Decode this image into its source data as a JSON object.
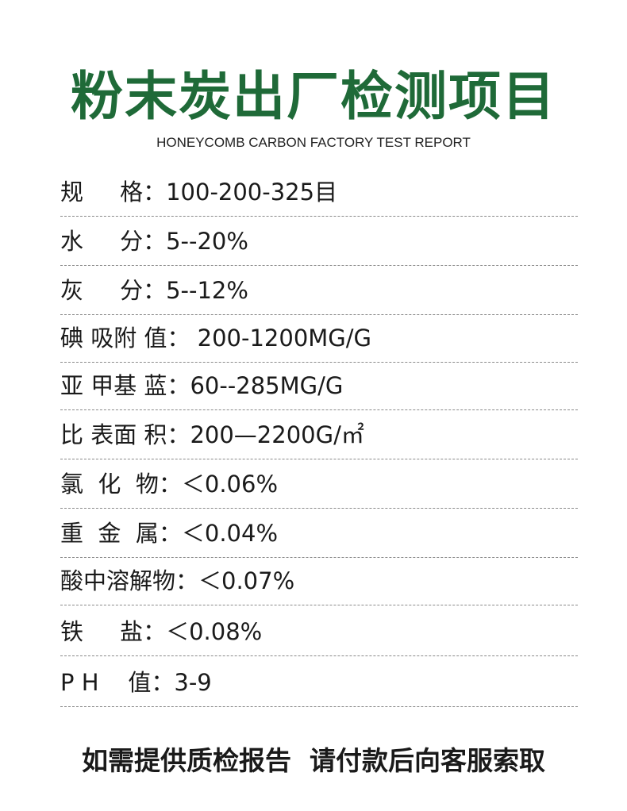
{
  "title": "粉末炭出厂检测项目",
  "subtitle": "HONEYCOMB CARBON FACTORY TEST REPORT",
  "colors": {
    "title": "#1f6a38",
    "text": "#1a1a1a",
    "divider": "#8a8a8a"
  },
  "items": [
    {
      "label": "规     格：",
      "value": "100-200-325目"
    },
    {
      "label": "水     分：",
      "value": "5--20%"
    },
    {
      "label": "灰     分：",
      "value": "5--12%"
    },
    {
      "label": "碘 吸附 值：",
      "value": " 200-1200MG/G"
    },
    {
      "label": "亚 甲基 蓝：",
      "value": "60--285MG/G"
    },
    {
      "label": "比 表面 积：",
      "value": "200—2200G/㎡"
    },
    {
      "label": "氯  化  物：",
      "value": "＜0.06%"
    },
    {
      "label": "重  金  属：",
      "value": "＜0.04%"
    },
    {
      "label": "酸中溶解物：",
      "value": "＜0.07%"
    },
    {
      "label": "铁     盐：",
      "value": "＜0.08%"
    },
    {
      "label": "P H    值：",
      "value": "3-9"
    }
  ],
  "footer": "如需提供质检报告  请付款后向客服索取"
}
